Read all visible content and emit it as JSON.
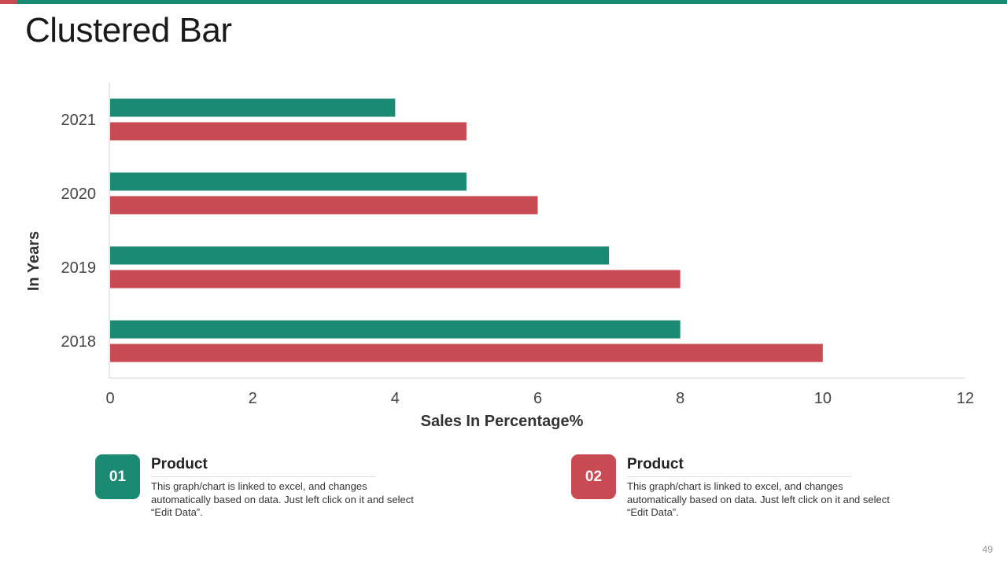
{
  "colors": {
    "teal": "#1a8a73",
    "red": "#c84a52",
    "top_bar": "#1a8a73",
    "top_accent": "#c84a52"
  },
  "slide": {
    "title": "Clustered Bar",
    "page_number": "49"
  },
  "chart_data": {
    "type": "bar",
    "orientation": "horizontal",
    "title": "",
    "xlabel": "Sales In Percentage%",
    "ylabel": "In Years",
    "categories": [
      "2021",
      "2020",
      "2019",
      "2018"
    ],
    "series": [
      {
        "name": "Product 01",
        "color": "#1a8a73",
        "values": [
          4,
          5,
          7,
          8
        ]
      },
      {
        "name": "Product 02",
        "color": "#c84a52",
        "values": [
          5,
          6,
          8,
          10
        ]
      }
    ],
    "xlim": [
      0,
      12
    ],
    "xticks": [
      "0",
      "2",
      "4",
      "6",
      "8",
      "10",
      "12"
    ],
    "grid": false
  },
  "legend": [
    {
      "number": "01",
      "title": "Product",
      "description": "This graph/chart is linked to excel, and changes automatically based on data. Just left click on it and select “Edit Data”."
    },
    {
      "number": "02",
      "title": "Product",
      "description": "This graph/chart is linked to excel, and changes automatically based on data. Just left click on it and select “Edit Data”."
    }
  ]
}
